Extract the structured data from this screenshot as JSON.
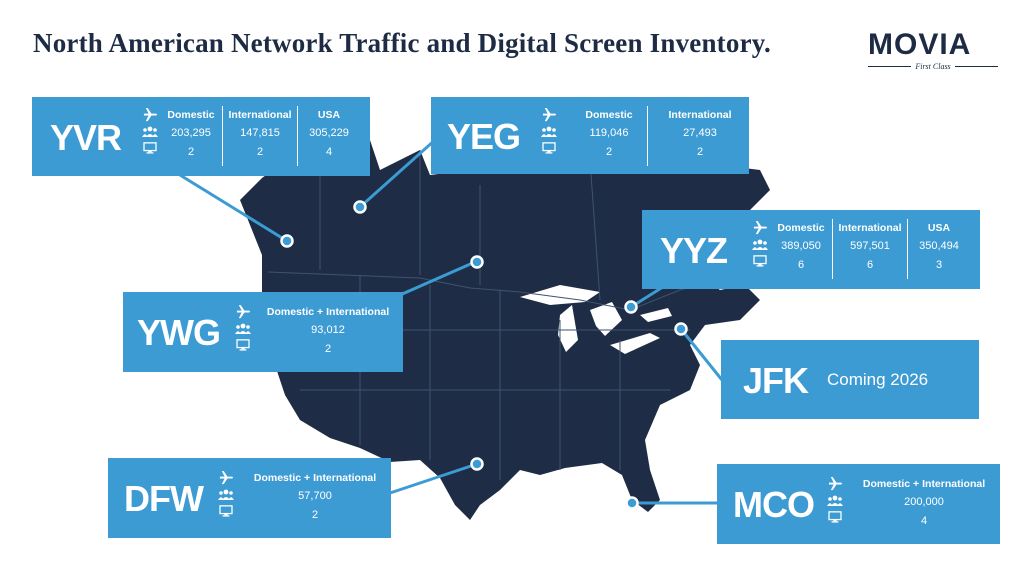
{
  "title": "North American Network Traffic and Digital Screen Inventory.",
  "logo": {
    "word": "MOVIA",
    "tagline": "First Class"
  },
  "colors": {
    "card": "#3d9bd4",
    "land": "#1e2d45",
    "title": "#1d2b44"
  },
  "icons": [
    "airplane-icon",
    "people-icon",
    "screen-icon"
  ],
  "airports": {
    "yvr": {
      "code": "YVR",
      "cols": [
        {
          "header": "Domestic",
          "passengers": "203,295",
          "screens": "2"
        },
        {
          "header": "International",
          "passengers": "147,815",
          "screens": "2"
        },
        {
          "header": "USA",
          "passengers": "305,229",
          "screens": "4"
        }
      ]
    },
    "yeg": {
      "code": "YEG",
      "cols": [
        {
          "header": "Domestic",
          "passengers": "119,046",
          "screens": "2"
        },
        {
          "header": "International",
          "passengers": "27,493",
          "screens": "2"
        }
      ]
    },
    "yyz": {
      "code": "YYZ",
      "cols": [
        {
          "header": "Domestic",
          "passengers": "389,050",
          "screens": "6"
        },
        {
          "header": "International",
          "passengers": "597,501",
          "screens": "6"
        },
        {
          "header": "USA",
          "passengers": "350,494",
          "screens": "3"
        }
      ]
    },
    "ywg": {
      "code": "YWG",
      "cols": [
        {
          "header": "Domestic + International",
          "passengers": "93,012",
          "screens": "2"
        }
      ]
    },
    "jfk": {
      "code": "JFK",
      "note": "Coming 2026"
    },
    "dfw": {
      "code": "DFW",
      "cols": [
        {
          "header": "Domestic + International",
          "passengers": "57,700",
          "screens": "2"
        }
      ]
    },
    "mco": {
      "code": "MCO",
      "cols": [
        {
          "header": "Domestic + International",
          "passengers": "200,000",
          "screens": "4"
        }
      ]
    }
  }
}
